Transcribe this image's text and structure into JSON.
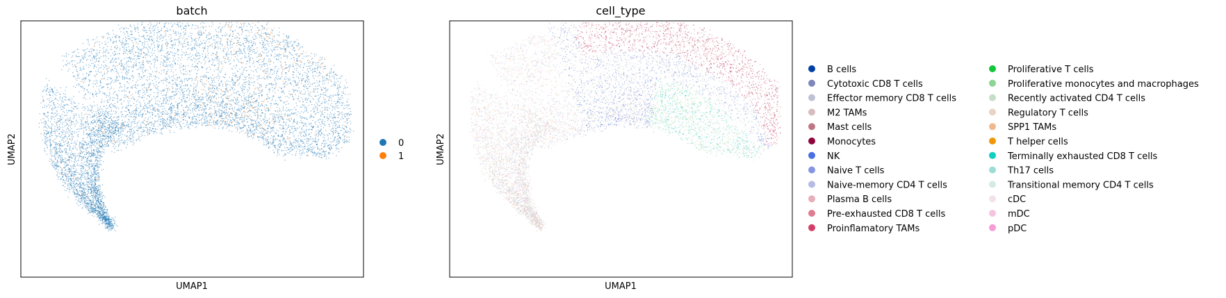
{
  "chart_data": [
    {
      "type": "scatter",
      "title": "batch",
      "xlabel": "UMAP1",
      "ylabel": "UMAP2",
      "grid": false,
      "ticks": false,
      "legend_placement": "right",
      "series": [
        {
          "name": "0",
          "color": "#1f77b4"
        },
        {
          "name": "1",
          "color": "#ff7f0e"
        }
      ]
    },
    {
      "type": "scatter",
      "title": "cell_type",
      "xlabel": "UMAP1",
      "ylabel": "UMAP2",
      "grid": false,
      "ticks": false,
      "legend_placement": "right, two columns",
      "series": [
        {
          "name": "B cells",
          "color": "#023fa5"
        },
        {
          "name": "Cytotoxic CD8 T cells",
          "color": "#7d87b9"
        },
        {
          "name": "Effector memory CD8 T cells",
          "color": "#bec1d4"
        },
        {
          "name": "M2 TAMs",
          "color": "#d6bcc0"
        },
        {
          "name": "Mast cells",
          "color": "#bb7784"
        },
        {
          "name": "Monocytes",
          "color": "#8e063b"
        },
        {
          "name": "NK",
          "color": "#4a6fe3"
        },
        {
          "name": "Naive T cells",
          "color": "#8595e1"
        },
        {
          "name": "Naive-memory CD4 T cells",
          "color": "#b5bbe3"
        },
        {
          "name": "Plasma B cells",
          "color": "#e6afb9"
        },
        {
          "name": "Pre-exhausted CD8 T cells",
          "color": "#e07b91"
        },
        {
          "name": "Proinflamatory TAMs",
          "color": "#d33f6a"
        },
        {
          "name": "Proliferative T cells",
          "color": "#11c638"
        },
        {
          "name": "Proliferative monocytes and macrophages",
          "color": "#8dd593"
        },
        {
          "name": "Recently activated CD4 T cells",
          "color": "#c6dec7"
        },
        {
          "name": "Regulatory T cells",
          "color": "#ead3c6"
        },
        {
          "name": "SPP1 TAMs",
          "color": "#f0b98d"
        },
        {
          "name": "T helper cells",
          "color": "#ef9708"
        },
        {
          "name": "Terminally exhausted CD8 T cells",
          "color": "#0fcfc0"
        },
        {
          "name": "Th17 cells",
          "color": "#9cded6"
        },
        {
          "name": "Transitional memory CD4 T cells",
          "color": "#d5eae7"
        },
        {
          "name": "cDC",
          "color": "#f3e1eb"
        },
        {
          "name": "mDC",
          "color": "#f6c4e1"
        },
        {
          "name": "pDC",
          "color": "#f79cd4"
        }
      ]
    }
  ]
}
